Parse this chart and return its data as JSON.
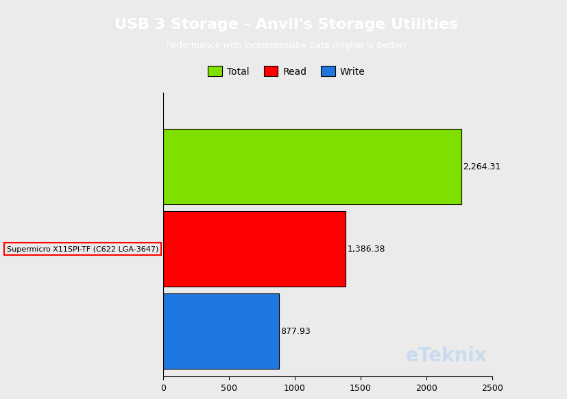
{
  "title": "USB 3 Storage - Anvil's Storage Utilities",
  "subtitle": "Performance with Incompressibe Data (Higher is Better)",
  "title_bg_color": "#19AAEC",
  "title_text_color": "#FFFFFF",
  "bg_color": "#EBEBEB",
  "plot_bg_color": "#EBEBEB",
  "label": "Supermicro X11SPI-TF (C622 LGA-3647)",
  "values": [
    2264.31,
    1386.38,
    877.93
  ],
  "bar_colors": [
    "#7FE000",
    "#FF0000",
    "#1F78E0"
  ],
  "bar_labels": [
    "Total",
    "Read",
    "Write"
  ],
  "value_labels": [
    "2,264.31",
    "1,386.38",
    "877.93"
  ],
  "xlim": [
    0,
    2500
  ],
  "xticks": [
    0,
    500,
    1000,
    1500,
    2000,
    2500
  ],
  "watermark": "eTeknix",
  "watermark_color": "#C8DCEF",
  "title_fontsize": 16,
  "subtitle_fontsize": 9,
  "legend_fontsize": 10,
  "value_fontsize": 9,
  "tick_fontsize": 9
}
